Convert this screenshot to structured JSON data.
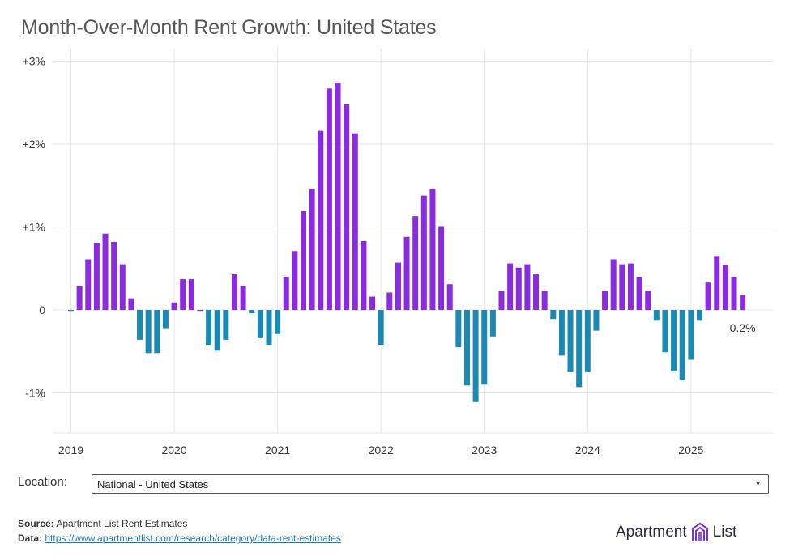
{
  "title": "Month-Over-Month Rent Growth: United States",
  "chart_data": {
    "type": "bar",
    "title": "Month-Over-Month Rent Growth: United States",
    "xlabel": "",
    "ylabel": "",
    "ylim": [
      -1.5,
      3.0
    ],
    "y_ticks": [
      {
        "value": 3,
        "label": "+3%"
      },
      {
        "value": 2,
        "label": "+2%"
      },
      {
        "value": 1,
        "label": "+1%"
      },
      {
        "value": 0,
        "label": "0"
      },
      {
        "value": -1,
        "label": "-1%"
      }
    ],
    "x_ticks": [
      "2019",
      "2020",
      "2021",
      "2022",
      "2023",
      "2024",
      "2025"
    ],
    "start": "2019-01",
    "end_label": "0.2%",
    "positive_color": "#8a2be2",
    "negative_color": "#1a8ab4",
    "values": [
      -0.01,
      0.29,
      0.61,
      0.81,
      0.92,
      0.82,
      0.55,
      0.14,
      -0.36,
      -0.52,
      -0.52,
      -0.22,
      0.09,
      0.37,
      0.37,
      0.0,
      -0.42,
      -0.49,
      -0.36,
      0.43,
      0.29,
      -0.04,
      -0.34,
      -0.42,
      -0.29,
      0.4,
      0.71,
      1.19,
      1.46,
      2.16,
      2.67,
      2.74,
      2.48,
      2.13,
      0.83,
      0.16,
      -0.42,
      0.21,
      0.57,
      0.88,
      1.13,
      1.38,
      1.46,
      1.01,
      0.31,
      -0.45,
      -0.91,
      -1.11,
      -0.9,
      -0.32,
      0.23,
      0.56,
      0.51,
      0.55,
      0.43,
      0.23,
      -0.11,
      -0.55,
      -0.75,
      -0.93,
      -0.75,
      -0.25,
      0.23,
      0.61,
      0.55,
      0.56,
      0.4,
      0.23,
      -0.13,
      -0.51,
      -0.74,
      -0.84,
      -0.6,
      -0.13,
      0.33,
      0.65,
      0.54,
      0.4,
      0.18
    ]
  },
  "location": {
    "label": "Location:",
    "selected": "National - United States",
    "arrow": "▼"
  },
  "footer": {
    "source_label": "Source:",
    "source_text": " Apartment List Rent Estimates",
    "data_label": "Data:",
    "data_link": "https://www.apartmentlist.com/research/category/data-rent-estimates"
  },
  "logo": {
    "left": "Apartment",
    "right": "List"
  }
}
